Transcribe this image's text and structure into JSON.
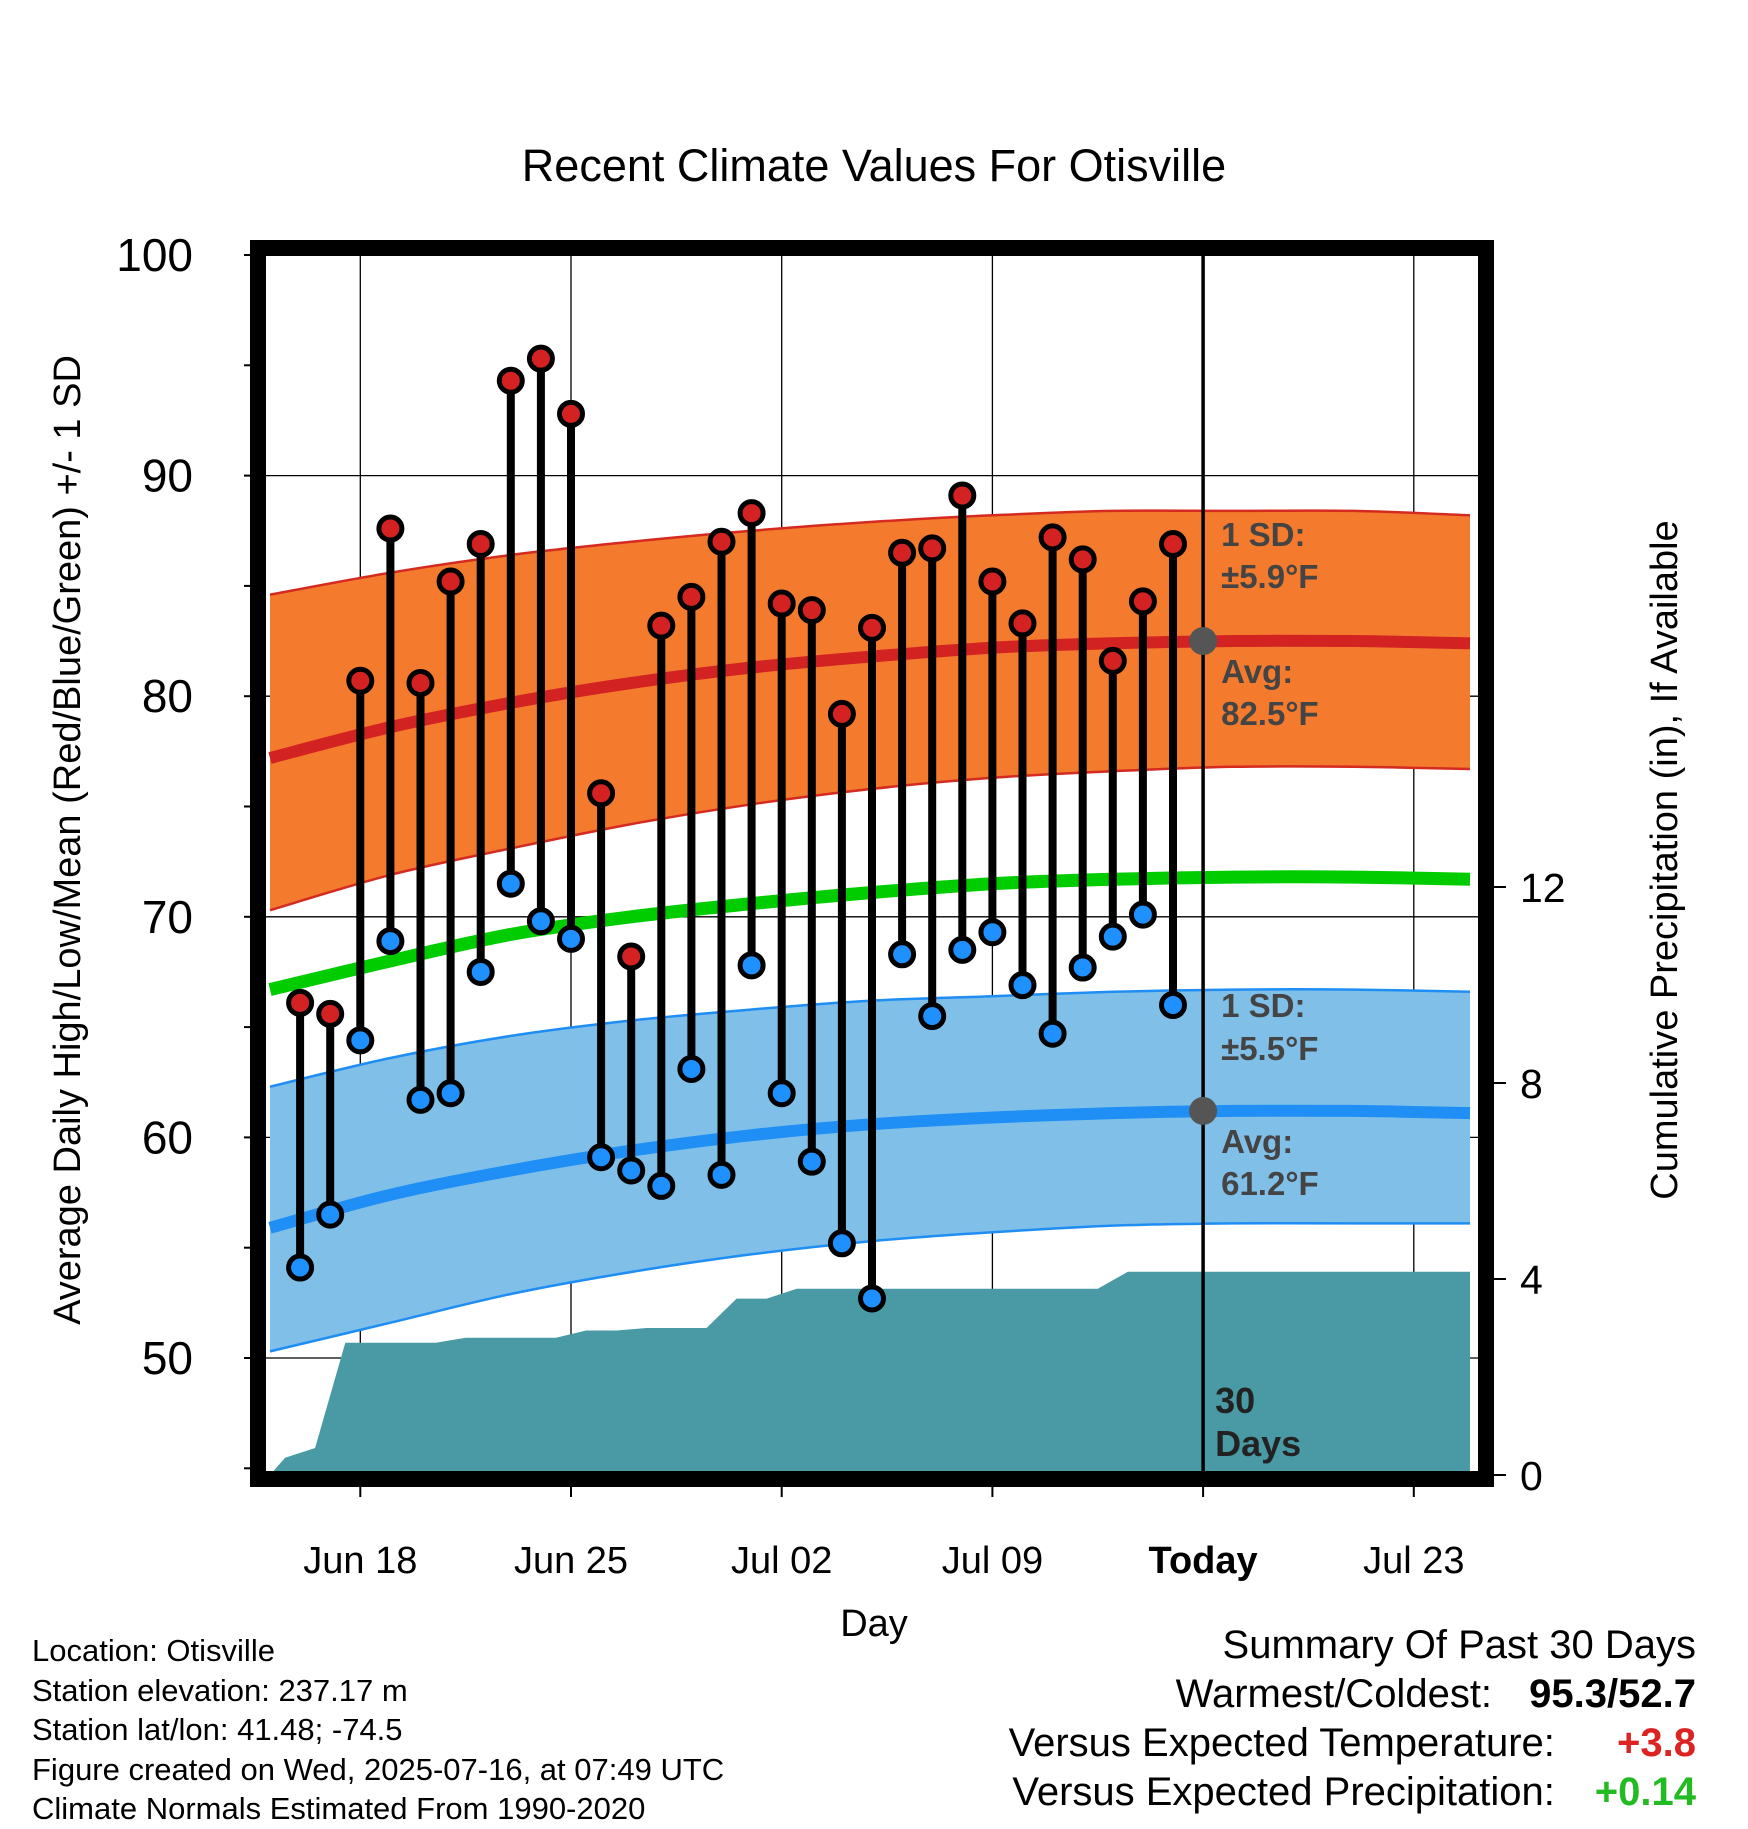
{
  "chart_data": {
    "type": "line",
    "title": "Recent Climate Values For Otisville",
    "xlabel": "Day",
    "ylabel": "Average Daily High/Low/Mean (Red/Blue/Green) +/- 1 SD",
    "y2label": "Cumulative Precipitation (in), If Available",
    "ylim": [
      44.5,
      100
    ],
    "y2lim": [
      0,
      25
    ],
    "yticks": [
      "100",
      "90",
      "80",
      "70",
      "60",
      "50"
    ],
    "y2ticks": [
      "0",
      "4",
      "8",
      "12"
    ],
    "x_dates": [
      "Jun 15",
      "Jun 16",
      "Jun 17",
      "Jun 18",
      "Jun 19",
      "Jun 20",
      "Jun 21",
      "Jun 22",
      "Jun 23",
      "Jun 24",
      "Jun 25",
      "Jun 26",
      "Jun 27",
      "Jun 28",
      "Jun 29",
      "Jun 30",
      "Jul 01",
      "Jul 02",
      "Jul 03",
      "Jul 04",
      "Jul 05",
      "Jul 06",
      "Jul 07",
      "Jul 08",
      "Jul 09",
      "Jul 10",
      "Jul 11",
      "Jul 12",
      "Jul 13",
      "Jul 14",
      "Jul 15",
      "Jul 16",
      "Jul 17",
      "Jul 18",
      "Jul 19",
      "Jul 20",
      "Jul 21",
      "Jul 22",
      "Jul 23",
      "Jul 24",
      "Jul 25"
    ],
    "xticks": [
      {
        "date": "Jun 18",
        "label": "Jun 18"
      },
      {
        "date": "Jun 25",
        "label": "Jun 25"
      },
      {
        "date": "Jul 02",
        "label": "Jul 02"
      },
      {
        "date": "Jul 09",
        "label": "Jul 09"
      },
      {
        "date": "Jul 16",
        "label": "Today"
      },
      {
        "date": "Jul 23",
        "label": "Jul 23"
      }
    ],
    "today": "Jul 16",
    "today_label_lines": [
      "30",
      "Days"
    ],
    "grid": true,
    "observed": {
      "dates": [
        "Jun 16",
        "Jun 17",
        "Jun 18",
        "Jun 19",
        "Jun 20",
        "Jun 21",
        "Jun 22",
        "Jun 23",
        "Jun 24",
        "Jun 25",
        "Jun 26",
        "Jun 27",
        "Jun 28",
        "Jun 29",
        "Jun 30",
        "Jul 01",
        "Jul 02",
        "Jul 03",
        "Jul 04",
        "Jul 05",
        "Jul 06",
        "Jul 07",
        "Jul 08",
        "Jul 09",
        "Jul 10",
        "Jul 11",
        "Jul 12",
        "Jul 13",
        "Jul 14",
        "Jul 15"
      ],
      "high": [
        66.1,
        65.6,
        80.7,
        87.6,
        80.6,
        85.2,
        86.9,
        94.3,
        95.3,
        92.8,
        75.6,
        68.2,
        83.2,
        84.5,
        87.0,
        88.3,
        84.2,
        83.9,
        79.2,
        83.1,
        86.5,
        86.7,
        89.1,
        85.2,
        83.3,
        87.2,
        86.2,
        81.6,
        84.3,
        86.9
      ],
      "low": [
        54.1,
        56.5,
        64.4,
        68.9,
        61.7,
        62.0,
        67.5,
        71.5,
        69.8,
        69.0,
        59.1,
        58.5,
        57.8,
        63.1,
        58.3,
        67.8,
        62.0,
        58.9,
        55.2,
        52.7,
        68.3,
        65.5,
        68.5,
        69.3,
        66.9,
        64.7,
        67.7,
        69.1,
        70.1,
        66.0
      ]
    },
    "normals": {
      "dates": [
        "Jun 15",
        "Jun 19",
        "Jun 23",
        "Jun 27",
        "Jul 01",
        "Jul 05",
        "Jul 09",
        "Jul 13",
        "Jul 17",
        "Jul 21",
        "Jul 25"
      ],
      "high_mean": [
        77.2,
        78.6,
        79.7,
        80.6,
        81.3,
        81.8,
        82.2,
        82.4,
        82.5,
        82.5,
        82.4
      ],
      "high_upper": [
        84.6,
        85.6,
        86.4,
        87.0,
        87.5,
        87.9,
        88.2,
        88.4,
        88.4,
        88.4,
        88.2
      ],
      "high_lower": [
        70.3,
        71.9,
        73.1,
        74.2,
        75.1,
        75.8,
        76.3,
        76.6,
        76.8,
        76.8,
        76.7
      ],
      "mean": [
        66.7,
        68.0,
        69.2,
        70.0,
        70.6,
        71.1,
        71.5,
        71.7,
        71.8,
        71.8,
        71.7
      ],
      "low_mean": [
        55.9,
        57.4,
        58.5,
        59.4,
        60.1,
        60.6,
        60.9,
        61.1,
        61.2,
        61.2,
        61.1
      ],
      "low_upper": [
        62.3,
        63.6,
        64.6,
        65.3,
        65.8,
        66.2,
        66.4,
        66.6,
        66.7,
        66.7,
        66.6
      ],
      "low_lower": [
        50.3,
        51.6,
        52.9,
        53.9,
        54.7,
        55.3,
        55.7,
        56.0,
        56.1,
        56.1,
        56.1
      ]
    },
    "precip_cumulative": {
      "dates": [
        "Jun 15",
        "Jun 16",
        "Jun 17",
        "Jun 18",
        "Jun 19",
        "Jun 20",
        "Jun 21",
        "Jun 22",
        "Jun 23",
        "Jun 24",
        "Jun 25",
        "Jun 26",
        "Jun 27",
        "Jun 28",
        "Jun 29",
        "Jun 30",
        "Jul 01",
        "Jul 02",
        "Jul 03",
        "Jul 04",
        "Jul 05",
        "Jul 06",
        "Jul 07",
        "Jul 08",
        "Jul 09",
        "Jul 10",
        "Jul 11",
        "Jul 12",
        "Jul 13",
        "Jul 14",
        "Jul 15",
        "Jul 16",
        "Jul 17",
        "Jul 18",
        "Jul 19",
        "Jul 20",
        "Jul 21",
        "Jul 22",
        "Jul 23",
        "Jul 24",
        "Jul 25"
      ],
      "values": [
        0.0,
        0.35,
        0.55,
        2.7,
        2.7,
        2.7,
        2.7,
        2.8,
        2.8,
        2.8,
        2.8,
        2.95,
        2.95,
        3.0,
        3.0,
        3.0,
        3.6,
        3.6,
        3.8,
        3.8,
        3.8,
        3.8,
        3.8,
        3.8,
        3.8,
        3.8,
        3.8,
        3.8,
        3.8,
        4.15,
        4.15,
        4.15,
        4.15,
        4.15,
        4.15,
        4.15,
        4.15,
        4.15,
        4.15,
        4.15,
        4.15
      ]
    },
    "annotations": {
      "high_sd": {
        "line1": "1 SD:",
        "line2": "±5.9°F"
      },
      "high_avg": {
        "line1": "Avg:",
        "line2": "82.5°F",
        "value": 82.5
      },
      "low_sd": {
        "line1": "1 SD:",
        "line2": "±5.5°F"
      },
      "low_avg": {
        "line1": "Avg:",
        "line2": "61.2°F",
        "value": 61.2
      }
    },
    "colors": {
      "high_band": "#f47b2e",
      "high_band_edge": "#d42a20",
      "high_line": "#d32222",
      "low_band": "#80c0e8",
      "low_band_edge": "#1e8ef4",
      "low_line": "#1f8ff5",
      "mean_line": "#00cc00",
      "precip": "#4a9aa5",
      "high_marker": "#d42222",
      "low_marker": "#1e90ff",
      "annotation_text": "#444444",
      "warm_value": "#dd2222",
      "wet_value": "#22bb22"
    }
  },
  "info": {
    "location": "Location: Otisville",
    "elevation": "Station elevation: 237.17 m",
    "latlon": "Station lat/lon: 41.48; -74.5",
    "created": "Figure created on Wed, 2025-07-16, at 07:49 UTC",
    "normals": "Climate Normals Estimated From 1990-2020"
  },
  "summary": {
    "title": "Summary Of Past 30 Days",
    "warm_cold_label": "Warmest/Coldest:",
    "warm_cold_value": "95.3/52.7",
    "temp_label": "Versus Expected Temperature:",
    "temp_value": "+3.8",
    "precip_label": "Versus Expected Precipitation:",
    "precip_value": "+0.14"
  }
}
